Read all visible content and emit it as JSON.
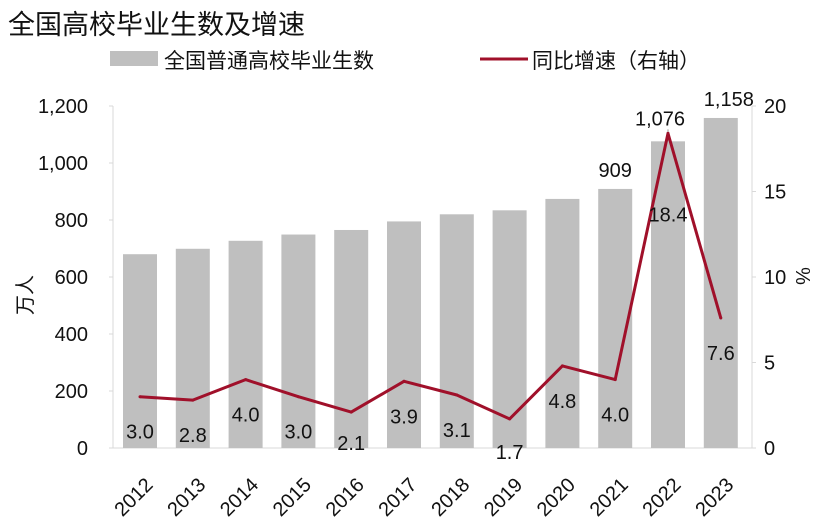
{
  "chart_data": {
    "type": "bar+line",
    "title": "全国高校毕业生数及增速",
    "categories": [
      "2012",
      "2013",
      "2014",
      "2015",
      "2016",
      "2017",
      "2018",
      "2019",
      "2020",
      "2021",
      "2022",
      "2023"
    ],
    "series": [
      {
        "name": "全国普通高校毕业生数",
        "type": "bar",
        "axis": "left",
        "color": "#bfbfbf",
        "values": [
          680,
          699,
          727,
          749,
          765,
          795,
          820,
          834,
          874,
          909,
          1076,
          1158
        ],
        "labels": [
          "",
          "",
          "",
          "",
          "",
          "",
          "",
          "",
          "",
          "909",
          "1,076",
          "1,158"
        ]
      },
      {
        "name": "同比增速（右轴）",
        "type": "line",
        "axis": "right",
        "color": "#a0102a",
        "values": [
          3.0,
          2.8,
          4.0,
          3.0,
          2.1,
          3.9,
          3.1,
          1.7,
          4.8,
          4.0,
          18.4,
          7.6
        ],
        "labels": [
          "3.0",
          "2.8",
          "4.0",
          "3.0",
          "2.1",
          "3.9",
          "3.1",
          "1.7",
          "4.8",
          "4.0",
          "18.4",
          "7.6"
        ]
      }
    ],
    "ylabel": "万人",
    "ylim": [
      0,
      1200
    ],
    "yticks": [
      "0",
      "200",
      "400",
      "600",
      "800",
      "1,000",
      "1,200"
    ],
    "y2label": "%",
    "y2lim": [
      0,
      20
    ],
    "y2ticks": [
      "0",
      "5",
      "10",
      "15",
      "20"
    ],
    "legend": "top"
  }
}
